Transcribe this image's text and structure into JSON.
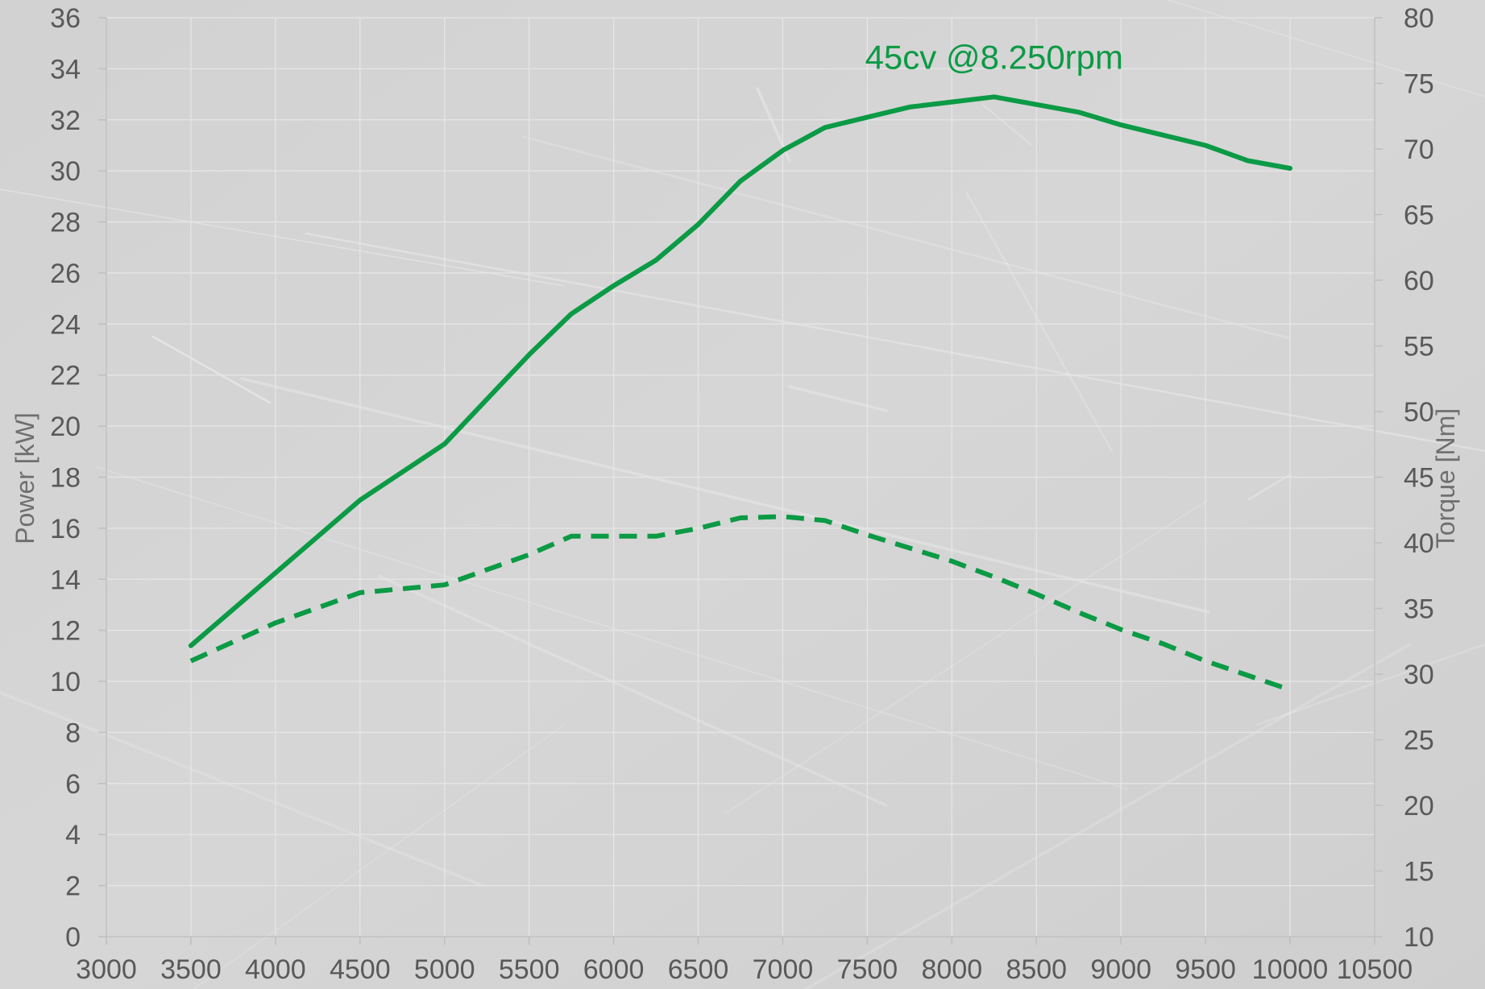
{
  "chart_data": {
    "type": "line",
    "title": "",
    "xlabel": "",
    "ylabel": "Power [kW]",
    "y2label": "Torque [Nm]",
    "xlim": [
      3000,
      10500
    ],
    "ylim": [
      0,
      36
    ],
    "y2lim": [
      10,
      80
    ],
    "x_ticks": [
      3000,
      3500,
      4000,
      4500,
      5000,
      5500,
      6000,
      6500,
      7000,
      7500,
      8000,
      8500,
      9000,
      9500,
      10000,
      10500
    ],
    "y_ticks": [
      0,
      2,
      4,
      6,
      8,
      10,
      12,
      14,
      16,
      18,
      20,
      22,
      24,
      26,
      28,
      30,
      32,
      34,
      36
    ],
    "y2_ticks": [
      10,
      15,
      20,
      25,
      30,
      35,
      40,
      45,
      50,
      55,
      60,
      65,
      70,
      75,
      80
    ],
    "grid": true,
    "legend": "none",
    "series": [
      {
        "axis": "left",
        "line_style": "solid",
        "color": "#0b9a45",
        "x": [
          3500,
          4500,
          5000,
          5500,
          5750,
          6000,
          6250,
          6500,
          6750,
          7000,
          7250,
          7500,
          7750,
          8000,
          8250,
          8500,
          8750,
          9000,
          9250,
          9500,
          9750,
          10000
        ],
        "values": [
          11.4,
          17.1,
          19.3,
          22.8,
          24.4,
          25.5,
          26.5,
          27.9,
          29.6,
          30.8,
          31.7,
          32.1,
          32.5,
          32.7,
          32.9,
          32.6,
          32.3,
          31.8,
          31.4,
          31.0,
          30.4,
          30.1
        ]
      },
      {
        "axis": "right",
        "line_style": "dashed",
        "color": "#0b9a45",
        "x": [
          3500,
          4000,
          4500,
          5000,
          5500,
          5750,
          6000,
          6250,
          6500,
          6750,
          7000,
          7250,
          7500,
          7750,
          8000,
          8250,
          8500,
          8750,
          9000,
          9250,
          9500,
          9750,
          10000
        ],
        "values": [
          31.0,
          33.9,
          36.2,
          36.8,
          39.1,
          40.5,
          40.5,
          40.5,
          41.1,
          41.9,
          42.0,
          41.7,
          40.6,
          39.6,
          38.6,
          37.4,
          36.1,
          34.7,
          33.4,
          32.3,
          31.0,
          29.9,
          28.8
        ]
      }
    ],
    "annotations": [
      {
        "text": "45cv @8.250rpm",
        "x": 8250,
        "y": 34.0,
        "color": "#0b9a45"
      }
    ]
  }
}
